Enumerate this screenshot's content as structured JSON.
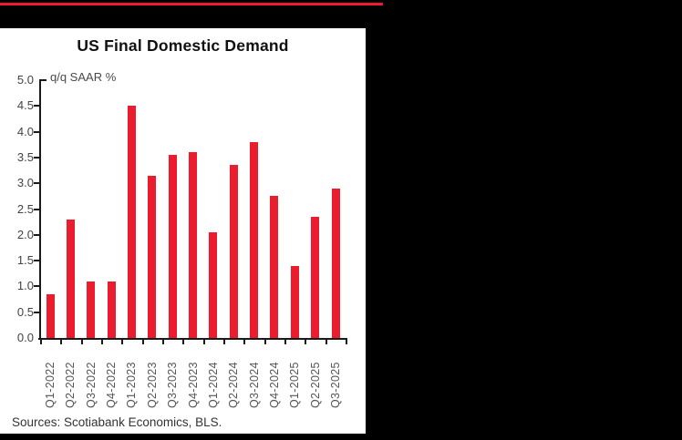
{
  "header": {
    "accent_color": "#eb1c2d"
  },
  "chart_data": {
    "type": "bar",
    "title": "US Final Domestic Demand",
    "unit_label": "q/q SAAR %",
    "categories": [
      "Q1-2022",
      "Q2-2022",
      "Q3-2022",
      "Q4-2022",
      "Q1-2023",
      "Q2-2023",
      "Q3-2023",
      "Q4-2023",
      "Q1-2024",
      "Q2-2024",
      "Q3-2024",
      "Q4-2024",
      "Q1-2025",
      "Q2-2025",
      "Q3-2025"
    ],
    "values": [
      0.85,
      2.3,
      1.1,
      1.1,
      4.5,
      3.15,
      3.55,
      3.6,
      2.05,
      3.35,
      3.8,
      2.75,
      1.4,
      2.35,
      2.9
    ],
    "xlabel": "",
    "ylabel": "q/q SAAR %",
    "ylim": [
      0,
      5
    ],
    "ytick_step": 0.5,
    "ytick_labels": [
      "0.0",
      "0.5",
      "1.0",
      "1.5",
      "2.0",
      "2.5",
      "3.0",
      "3.5",
      "4.0",
      "4.5",
      "5.0"
    ],
    "bar_color": "#eb1c2d",
    "grid": false,
    "legend": "none",
    "x_labels_rotated_90": true
  },
  "footer": {
    "sources": "Sources: Scotiabank Economics, BLS."
  }
}
